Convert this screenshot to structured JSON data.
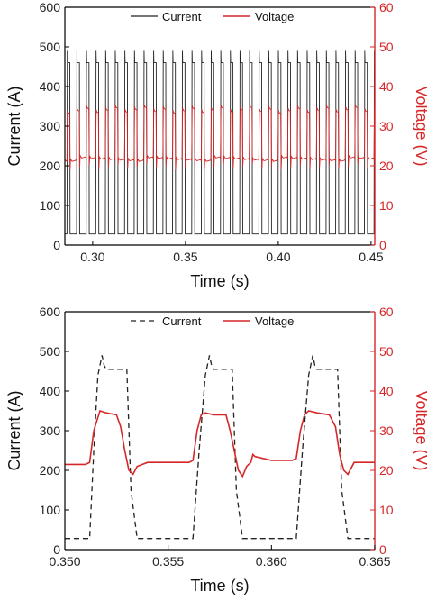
{
  "colors": {
    "current": "#222222",
    "voltage": "#d62728",
    "axis": "#000000"
  },
  "chart_data": [
    {
      "type": "line",
      "title": "",
      "xlabel": "Time (s)",
      "ylabel": "Current (A)",
      "ylabel_right": "Voltage (V)",
      "xlim": [
        0.285,
        0.452
      ],
      "ylim": [
        0,
        600
      ],
      "ylim_right": [
        0,
        60
      ],
      "xticks": [
        "0.30",
        "0.35",
        "0.40",
        "0.45"
      ],
      "xtick_values": [
        0.3,
        0.35,
        0.4,
        0.45
      ],
      "yticks": [
        "0",
        "100",
        "200",
        "300",
        "400",
        "500",
        "600"
      ],
      "yticks_right": [
        "0",
        "10",
        "20",
        "30",
        "40",
        "50",
        "60"
      ],
      "legend_position": "top-center",
      "series": [
        {
          "name": "Current",
          "axis": "left",
          "style": "solid",
          "pulse_start": 0.2862,
          "pulse_period": 0.00517,
          "pulse_count": 33,
          "pulse_width": 0.00148,
          "peak": 490,
          "plateau": 460,
          "baseline": 28
        },
        {
          "name": "Voltage",
          "axis": "right",
          "style": "solid",
          "pulse_start": 0.2862,
          "pulse_period": 0.00517,
          "pulse_count": 33,
          "pulse_width": 0.00148,
          "high": 34.5,
          "baseline": 21.5,
          "dip": 19
        }
      ]
    },
    {
      "type": "line",
      "title": "",
      "xlabel": "Time (s)",
      "ylabel": "Current (A)",
      "ylabel_right": "Voltage (V)",
      "xlim": [
        0.35,
        0.365
      ],
      "ylim": [
        0,
        600
      ],
      "ylim_right": [
        0,
        60
      ],
      "xticks": [
        "0.350",
        "0.355",
        "0.360",
        "0.365"
      ],
      "xtick_values": [
        0.35,
        0.355,
        0.36,
        0.365
      ],
      "yticks": [
        "0",
        "100",
        "200",
        "300",
        "400",
        "500",
        "600"
      ],
      "yticks_right": [
        "0",
        "10",
        "20",
        "30",
        "40",
        "50",
        "60"
      ],
      "legend_position": "top-center",
      "series": [
        {
          "name": "Current",
          "axis": "left",
          "style": "dashed",
          "x": [
            0.35,
            0.3512,
            0.3514,
            0.3516,
            0.3518,
            0.3519,
            0.352,
            0.353,
            0.3532,
            0.3535,
            0.3555,
            0.3562,
            0.3565,
            0.3568,
            0.357,
            0.3571,
            0.3572,
            0.3581,
            0.3583,
            0.3586,
            0.3605,
            0.3612,
            0.3615,
            0.3618,
            0.362,
            0.3621,
            0.3622,
            0.3632,
            0.3634,
            0.3637,
            0.365
          ],
          "y": [
            28,
            28,
            250,
            440,
            490,
            465,
            455,
            455,
            150,
            28,
            28,
            28,
            250,
            440,
            490,
            465,
            455,
            455,
            150,
            28,
            28,
            28,
            250,
            440,
            490,
            465,
            455,
            455,
            150,
            28,
            28
          ]
        },
        {
          "name": "Voltage",
          "axis": "right",
          "style": "solid",
          "x": [
            0.35,
            0.351,
            0.3512,
            0.3514,
            0.3517,
            0.352,
            0.3525,
            0.3527,
            0.3529,
            0.3531,
            0.3533,
            0.3535,
            0.354,
            0.355,
            0.356,
            0.3562,
            0.3564,
            0.3566,
            0.3568,
            0.3572,
            0.3578,
            0.358,
            0.3582,
            0.3584,
            0.3586,
            0.3588,
            0.359,
            0.3591,
            0.3592,
            0.3596,
            0.36,
            0.361,
            0.3612,
            0.3614,
            0.3616,
            0.3618,
            0.3622,
            0.3628,
            0.3631,
            0.3633,
            0.3635,
            0.3637,
            0.364,
            0.365
          ],
          "y": [
            21.5,
            21.5,
            22,
            30,
            35,
            34.5,
            34,
            31,
            25,
            20,
            19,
            21,
            22,
            22,
            22,
            22.5,
            30,
            34,
            34.5,
            34,
            34,
            30,
            25,
            20,
            18.5,
            21,
            22,
            24,
            23.5,
            23,
            22.5,
            22.5,
            23,
            30,
            34,
            35,
            34.5,
            34,
            31,
            24,
            20,
            19,
            22,
            22
          ]
        }
      ]
    }
  ]
}
